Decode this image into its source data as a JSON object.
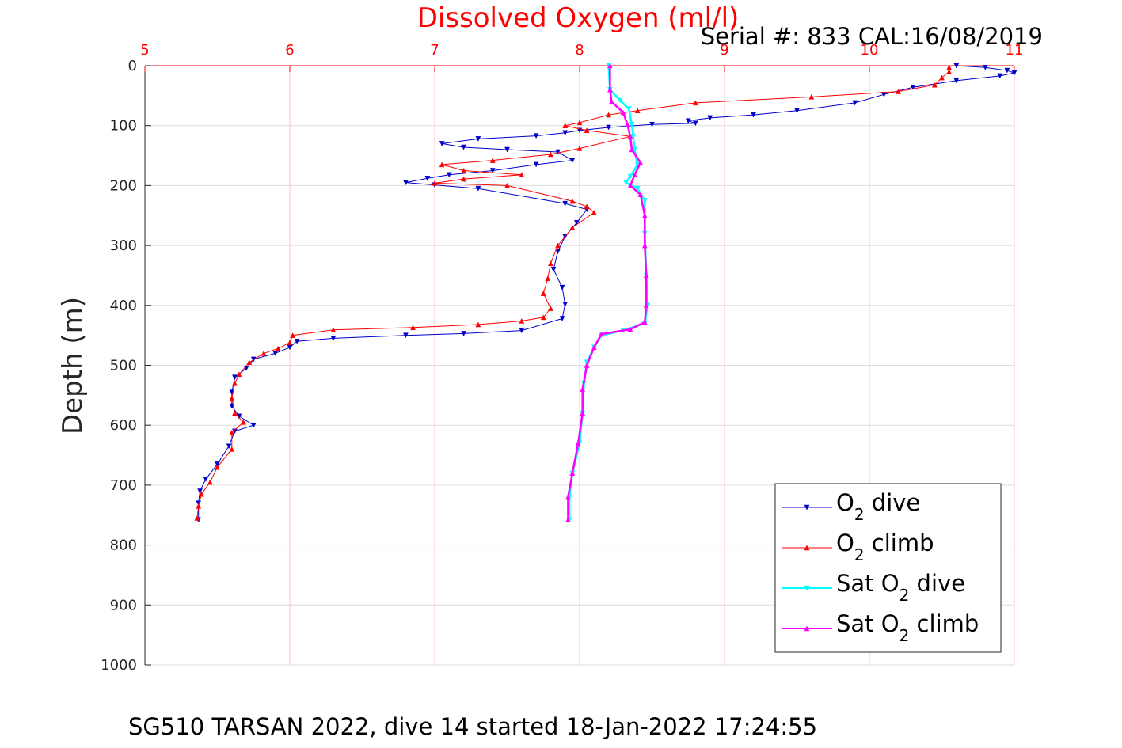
{
  "title": "Dissolved Oxygen (ml/l)",
  "serial_text": "Serial #: 833  CAL:16/08/2019",
  "caption": "SG510 TARSAN 2022, dive 14 started 18-Jan-2022 17:24:55",
  "chart_data": {
    "type": "line",
    "xlabel": "Dissolved Oxygen (ml/l)",
    "ylabel": "Depth (m)",
    "xlim": [
      5,
      11
    ],
    "ylim": [
      0,
      1000
    ],
    "y_reversed": true,
    "x_axis_position": "top",
    "x_ticks": [
      5,
      6,
      7,
      8,
      9,
      10,
      11
    ],
    "y_ticks": [
      0,
      100,
      200,
      300,
      400,
      500,
      600,
      700,
      800,
      900,
      1000
    ],
    "grid": true,
    "legend_position": "bottom-right",
    "colors": {
      "o2_dive": "#0000cc",
      "o2_climb": "#ff0000",
      "sat_dive": "#00ffff",
      "sat_climb": "#ff00ff",
      "grid_x": "#ffc0c8",
      "grid_y": "#dcdcdc",
      "top_axis": "#ff0000"
    },
    "series": [
      {
        "key": "o2_dive",
        "legend_main": "O",
        "legend_sub": "2",
        "legend_rest": " dive",
        "marker": "triangle-down",
        "points": [
          [
            10.6,
            0
          ],
          [
            10.8,
            3
          ],
          [
            10.95,
            8
          ],
          [
            11.0,
            12
          ],
          [
            10.9,
            17
          ],
          [
            10.6,
            25
          ],
          [
            10.3,
            36
          ],
          [
            10.1,
            48
          ],
          [
            9.9,
            62
          ],
          [
            9.5,
            75
          ],
          [
            9.2,
            82
          ],
          [
            8.9,
            87
          ],
          [
            8.75,
            92
          ],
          [
            8.8,
            96
          ],
          [
            8.5,
            98
          ],
          [
            8.2,
            103
          ],
          [
            8.0,
            108
          ],
          [
            7.9,
            112
          ],
          [
            7.7,
            117
          ],
          [
            7.3,
            122
          ],
          [
            7.05,
            130
          ],
          [
            7.2,
            136
          ],
          [
            7.5,
            140
          ],
          [
            7.85,
            144
          ],
          [
            7.95,
            158
          ],
          [
            7.7,
            165
          ],
          [
            7.4,
            175
          ],
          [
            7.1,
            182
          ],
          [
            6.95,
            188
          ],
          [
            6.8,
            195
          ],
          [
            7.0,
            199
          ],
          [
            7.3,
            205
          ],
          [
            7.9,
            230
          ],
          [
            8.05,
            240
          ],
          [
            7.98,
            262
          ],
          [
            7.9,
            285
          ],
          [
            7.85,
            310
          ],
          [
            7.82,
            340
          ],
          [
            7.88,
            370
          ],
          [
            7.9,
            398
          ],
          [
            7.88,
            422
          ],
          [
            7.6,
            442
          ],
          [
            7.2,
            447
          ],
          [
            6.8,
            450
          ],
          [
            6.3,
            455
          ],
          [
            6.05,
            460
          ],
          [
            6.0,
            470
          ],
          [
            5.9,
            480
          ],
          [
            5.75,
            490
          ],
          [
            5.7,
            505
          ],
          [
            5.62,
            520
          ],
          [
            5.6,
            545
          ],
          [
            5.6,
            568
          ],
          [
            5.65,
            585
          ],
          [
            5.75,
            600
          ],
          [
            5.62,
            610
          ],
          [
            5.58,
            635
          ],
          [
            5.5,
            665
          ],
          [
            5.42,
            690
          ],
          [
            5.38,
            710
          ],
          [
            5.37,
            730
          ],
          [
            5.37,
            758
          ]
        ]
      },
      {
        "key": "o2_climb",
        "legend_main": "O",
        "legend_sub": "2",
        "legend_rest": " climb",
        "marker": "triangle-up",
        "points": [
          [
            5.36,
            755
          ],
          [
            5.37,
            735
          ],
          [
            5.39,
            715
          ],
          [
            5.45,
            695
          ],
          [
            5.5,
            670
          ],
          [
            5.6,
            640
          ],
          [
            5.6,
            612
          ],
          [
            5.68,
            595
          ],
          [
            5.62,
            580
          ],
          [
            5.6,
            555
          ],
          [
            5.62,
            530
          ],
          [
            5.65,
            515
          ],
          [
            5.72,
            495
          ],
          [
            5.82,
            480
          ],
          [
            5.92,
            472
          ],
          [
            6.0,
            462
          ],
          [
            6.02,
            450
          ],
          [
            6.3,
            441
          ],
          [
            6.85,
            437
          ],
          [
            7.3,
            432
          ],
          [
            7.6,
            426
          ],
          [
            7.75,
            420
          ],
          [
            7.8,
            405
          ],
          [
            7.75,
            380
          ],
          [
            7.78,
            355
          ],
          [
            7.8,
            330
          ],
          [
            7.85,
            300
          ],
          [
            7.95,
            270
          ],
          [
            8.1,
            245
          ],
          [
            8.05,
            235
          ],
          [
            7.95,
            226
          ],
          [
            7.5,
            200
          ],
          [
            7.0,
            196
          ],
          [
            7.2,
            189
          ],
          [
            7.6,
            182
          ],
          [
            7.2,
            175
          ],
          [
            7.05,
            165
          ],
          [
            7.4,
            158
          ],
          [
            7.8,
            148
          ],
          [
            8.0,
            138
          ],
          [
            8.35,
            118
          ],
          [
            8.05,
            108
          ],
          [
            7.9,
            100
          ],
          [
            8.0,
            95
          ],
          [
            8.2,
            82
          ],
          [
            8.4,
            75
          ],
          [
            8.8,
            62
          ],
          [
            9.6,
            52
          ],
          [
            10.2,
            43
          ],
          [
            10.45,
            32
          ],
          [
            10.5,
            20
          ],
          [
            10.55,
            10
          ],
          [
            10.55,
            3
          ]
        ]
      },
      {
        "key": "sat_dive",
        "legend_main": "Sat O",
        "legend_sub": "2",
        "legend_rest": " dive",
        "marker": "triangle-down",
        "points": [
          [
            8.2,
            0
          ],
          [
            8.21,
            40
          ],
          [
            8.28,
            58
          ],
          [
            8.34,
            72
          ],
          [
            8.36,
            98
          ],
          [
            8.37,
            118
          ],
          [
            8.38,
            140
          ],
          [
            8.4,
            165
          ],
          [
            8.35,
            185
          ],
          [
            8.32,
            195
          ],
          [
            8.4,
            205
          ],
          [
            8.45,
            225
          ],
          [
            8.45,
            280
          ],
          [
            8.46,
            350
          ],
          [
            8.47,
            400
          ],
          [
            8.45,
            430
          ],
          [
            8.3,
            442
          ],
          [
            8.15,
            450
          ],
          [
            8.1,
            470
          ],
          [
            8.05,
            495
          ],
          [
            8.03,
            530
          ],
          [
            8.02,
            580
          ],
          [
            8.0,
            630
          ],
          [
            7.95,
            680
          ],
          [
            7.93,
            720
          ],
          [
            7.93,
            758
          ]
        ]
      },
      {
        "key": "sat_climb",
        "legend_main": "Sat O",
        "legend_sub": "2",
        "legend_rest": " climb",
        "marker": "triangle-up",
        "points": [
          [
            7.92,
            758
          ],
          [
            7.92,
            720
          ],
          [
            7.95,
            680
          ],
          [
            7.99,
            630
          ],
          [
            8.02,
            580
          ],
          [
            8.02,
            540
          ],
          [
            8.05,
            500
          ],
          [
            8.1,
            470
          ],
          [
            8.15,
            448
          ],
          [
            8.35,
            440
          ],
          [
            8.45,
            428
          ],
          [
            8.46,
            400
          ],
          [
            8.46,
            350
          ],
          [
            8.45,
            300
          ],
          [
            8.45,
            250
          ],
          [
            8.42,
            215
          ],
          [
            8.35,
            200
          ],
          [
            8.38,
            182
          ],
          [
            8.42,
            162
          ],
          [
            8.36,
            140
          ],
          [
            8.35,
            118
          ],
          [
            8.33,
            98
          ],
          [
            8.3,
            78
          ],
          [
            8.22,
            60
          ],
          [
            8.21,
            40
          ],
          [
            8.21,
            0
          ]
        ]
      }
    ]
  }
}
